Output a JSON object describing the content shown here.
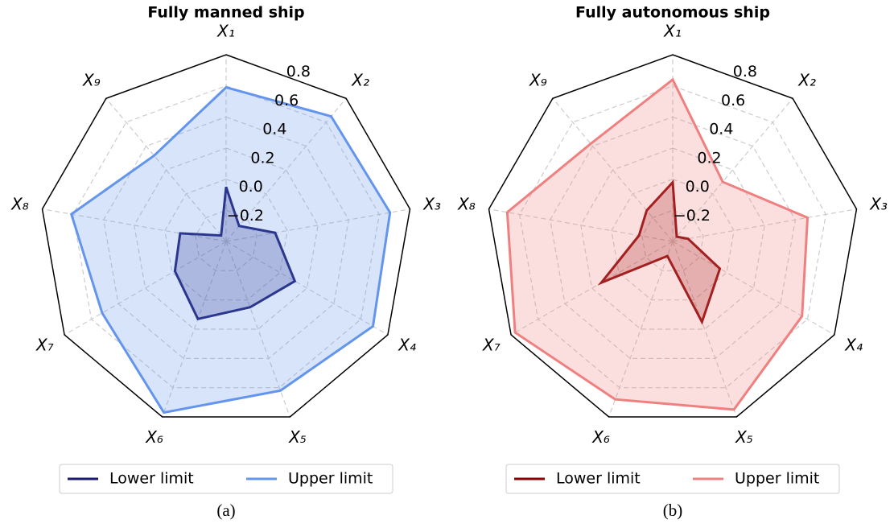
{
  "chart_data": [
    {
      "type": "radar",
      "title": "Fully manned ship",
      "caption": "(a)",
      "categories": [
        "X₁",
        "X₂",
        "X₃",
        "X₄",
        "X₅",
        "X₆",
        "X₇",
        "X₈",
        "X₉"
      ],
      "ylim": [
        -0.4,
        0.8
      ],
      "yticks": [
        {
          "value": -0.2,
          "label": "−0.2"
        },
        {
          "value": 0,
          "label": "0.0"
        },
        0.2,
        0.4,
        0.6,
        0.8
      ],
      "series": [
        {
          "name": "Lower limit",
          "color": "#191970",
          "values": [
            -0.05,
            -0.27,
            -0.08,
            0.11,
            0.05,
            0.13,
            -0.02,
            -0.1,
            -0.35
          ]
        },
        {
          "name": "Upper limit",
          "color": "#6495ed",
          "values": [
            0.59,
            0.65,
            0.67,
            0.69,
            0.62,
            0.77,
            0.52,
            0.61,
            0.32
          ]
        }
      ]
    },
    {
      "type": "radar",
      "title": "Fully autonomous ship",
      "caption": "(b)",
      "categories": [
        "X₁",
        "X₂",
        "X₃",
        "X₄",
        "X₅",
        "X₆",
        "X₇",
        "X₈",
        "X₉"
      ],
      "ylim": [
        -0.4,
        0.8
      ],
      "yticks": [
        {
          "value": -0.2,
          "label": "−0.2"
        },
        {
          "value": 0,
          "label": "0.0"
        },
        0.2,
        0.4,
        0.6,
        0.8
      ],
      "series": [
        {
          "name": "Lower limit",
          "color": "#8b0000",
          "values": [
            -0.02,
            -0.36,
            -0.3,
            -0.05,
            0.15,
            -0.3,
            0.13,
            -0.18,
            -0.14
          ]
        },
        {
          "name": "Upper limit",
          "color": "#f08080",
          "values": [
            0.64,
            0.1,
            0.48,
            0.56,
            0.75,
            0.68,
            0.77,
            0.68,
            0.42
          ]
        }
      ]
    }
  ]
}
